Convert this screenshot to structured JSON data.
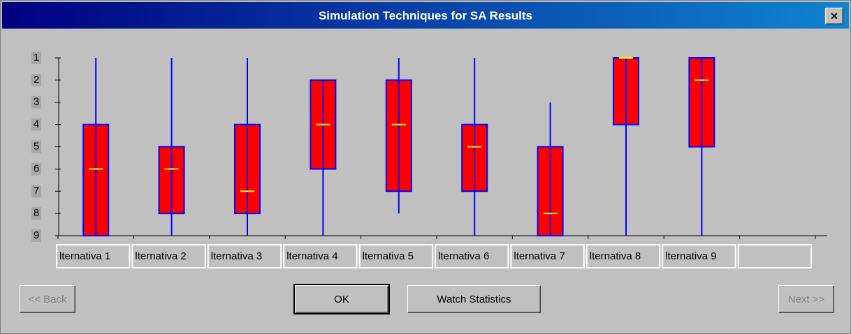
{
  "window": {
    "title": "Simulation Techniques for SA Results",
    "close": "✕"
  },
  "chart_data": {
    "type": "box",
    "categories": [
      "lternativa 1",
      "lternativa 2",
      "lternativa 3",
      "lternativa 4",
      "lternativa 5",
      "lternativa 6",
      "lternativa 7",
      "lternativa 8",
      "lternativa 9"
    ],
    "min": [
      1,
      1,
      1,
      2,
      1,
      1,
      3,
      1,
      1
    ],
    "q1": [
      4,
      5,
      4,
      2,
      2,
      4,
      5,
      1,
      1
    ],
    "median": [
      6,
      6,
      7,
      4,
      4,
      5,
      8,
      1,
      2
    ],
    "q3": [
      9,
      8,
      8,
      6,
      7,
      7,
      9,
      4,
      5
    ],
    "max": [
      9,
      9,
      9,
      9,
      8,
      9,
      9,
      9,
      9
    ],
    "ylim": [
      1,
      9
    ],
    "yticks": [
      1,
      2,
      3,
      4,
      5,
      6,
      7,
      8,
      9
    ],
    "y_reversed": true,
    "box_color": "#ff0000",
    "edge_color": "#0000ff",
    "median_color": "#ffff00"
  },
  "buttons": {
    "back": "<< Back",
    "ok": "OK",
    "watch": "Watch Statistics",
    "next": "Next >>"
  }
}
